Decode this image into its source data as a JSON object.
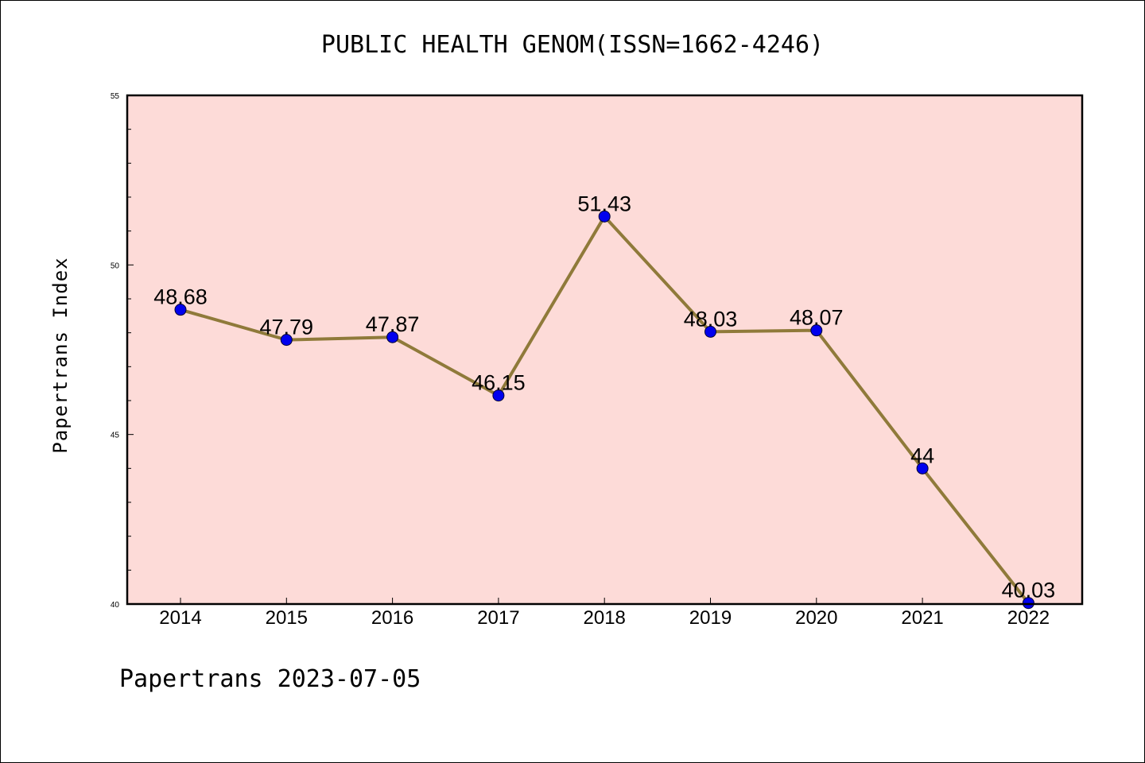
{
  "chart_data": {
    "type": "line",
    "title": "PUBLIC HEALTH GENOM(ISSN=1662-4246)",
    "xlabel": "",
    "ylabel": "Papertrans Index",
    "categories": [
      "2014",
      "2015",
      "2016",
      "2017",
      "2018",
      "2019",
      "2020",
      "2021",
      "2022"
    ],
    "series": [
      {
        "values": [
          48.68,
          47.79,
          47.87,
          46.15,
          51.43,
          48.03,
          48.07,
          44,
          40.03
        ],
        "labels": [
          "48.68",
          "47.79",
          "47.87",
          "46.15",
          "51.43",
          "48.03",
          "48.07",
          "44",
          "40.03"
        ]
      }
    ],
    "ylim": [
      40,
      55
    ],
    "yticks": [
      "40",
      "45",
      "50",
      "55"
    ],
    "grid": false,
    "line_color": "#8f7a3a",
    "marker_color": "#0000ee",
    "plot_background": "#fddbd8"
  },
  "footer": "Papertrans 2023-07-05"
}
